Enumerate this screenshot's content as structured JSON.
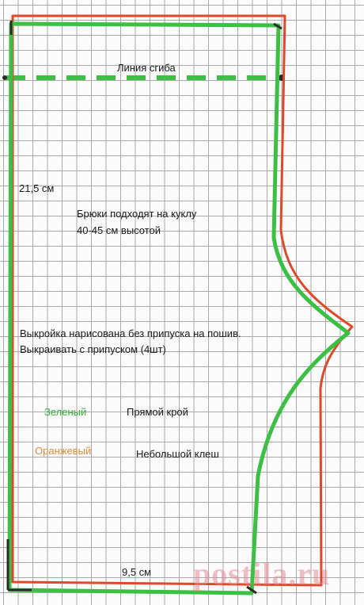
{
  "labels": {
    "fold_line": "Линия сгиба",
    "height_measure": "21,5 см",
    "doll_fit_line1": "Брюки подходят на куклу",
    "doll_fit_line2": "40-45 см высотой",
    "note_line1": "Выкройка нарисована без припуска на пошив.",
    "note_line2": "Выкраивать с припуском (4шт)",
    "green_name": "Зеленый",
    "green_desc": "Прямой крой",
    "orange_name": "Оранжевый",
    "orange_desc": "Небольшой клеш",
    "width_measure": "9,5 см"
  },
  "watermark": "postila.ru",
  "colors": {
    "green_line": "#3bc043",
    "orange_line": "#e0482a",
    "dark_line": "#2b2b2b",
    "grid": "#a9a9a9"
  }
}
